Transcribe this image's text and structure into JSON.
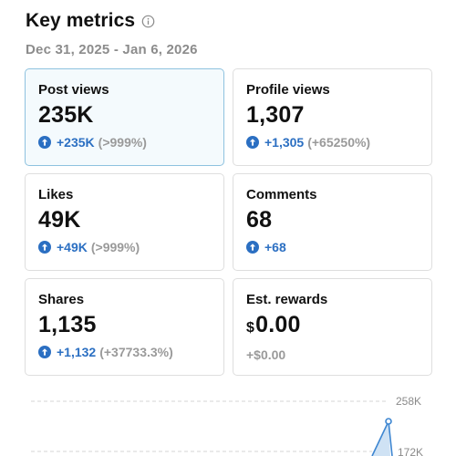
{
  "header": {
    "title": "Key metrics",
    "date_range": "Dec 31, 2025 - Jan 6, 2026"
  },
  "metrics": [
    {
      "label": "Post views",
      "value": "235K",
      "delta": "+235K",
      "pct": "(>999%)",
      "selected": true
    },
    {
      "label": "Profile views",
      "value": "1,307",
      "delta": "+1,305",
      "pct": "(+65250%)"
    },
    {
      "label": "Likes",
      "value": "49K",
      "delta": "+49K",
      "pct": "(>999%)"
    },
    {
      "label": "Comments",
      "value": "68",
      "delta": "+68",
      "pct": ""
    },
    {
      "label": "Shares",
      "value": "1,135",
      "delta": "+1,132",
      "pct": "(+37733.3%)"
    },
    {
      "label": "Est. rewards",
      "currency": "$",
      "value": "0.00",
      "delta": "+$0.00",
      "pct": ""
    }
  ],
  "chart_data": {
    "type": "line",
    "y_ticks": [
      "258K",
      "172K"
    ],
    "grid": true
  },
  "colors": {
    "accent": "#2b6fc2",
    "selected_border": "#8ec2df",
    "muted": "#9a9a9a"
  },
  "icons": {
    "info": "info-icon",
    "increase": "arrow-up-circle-icon"
  }
}
